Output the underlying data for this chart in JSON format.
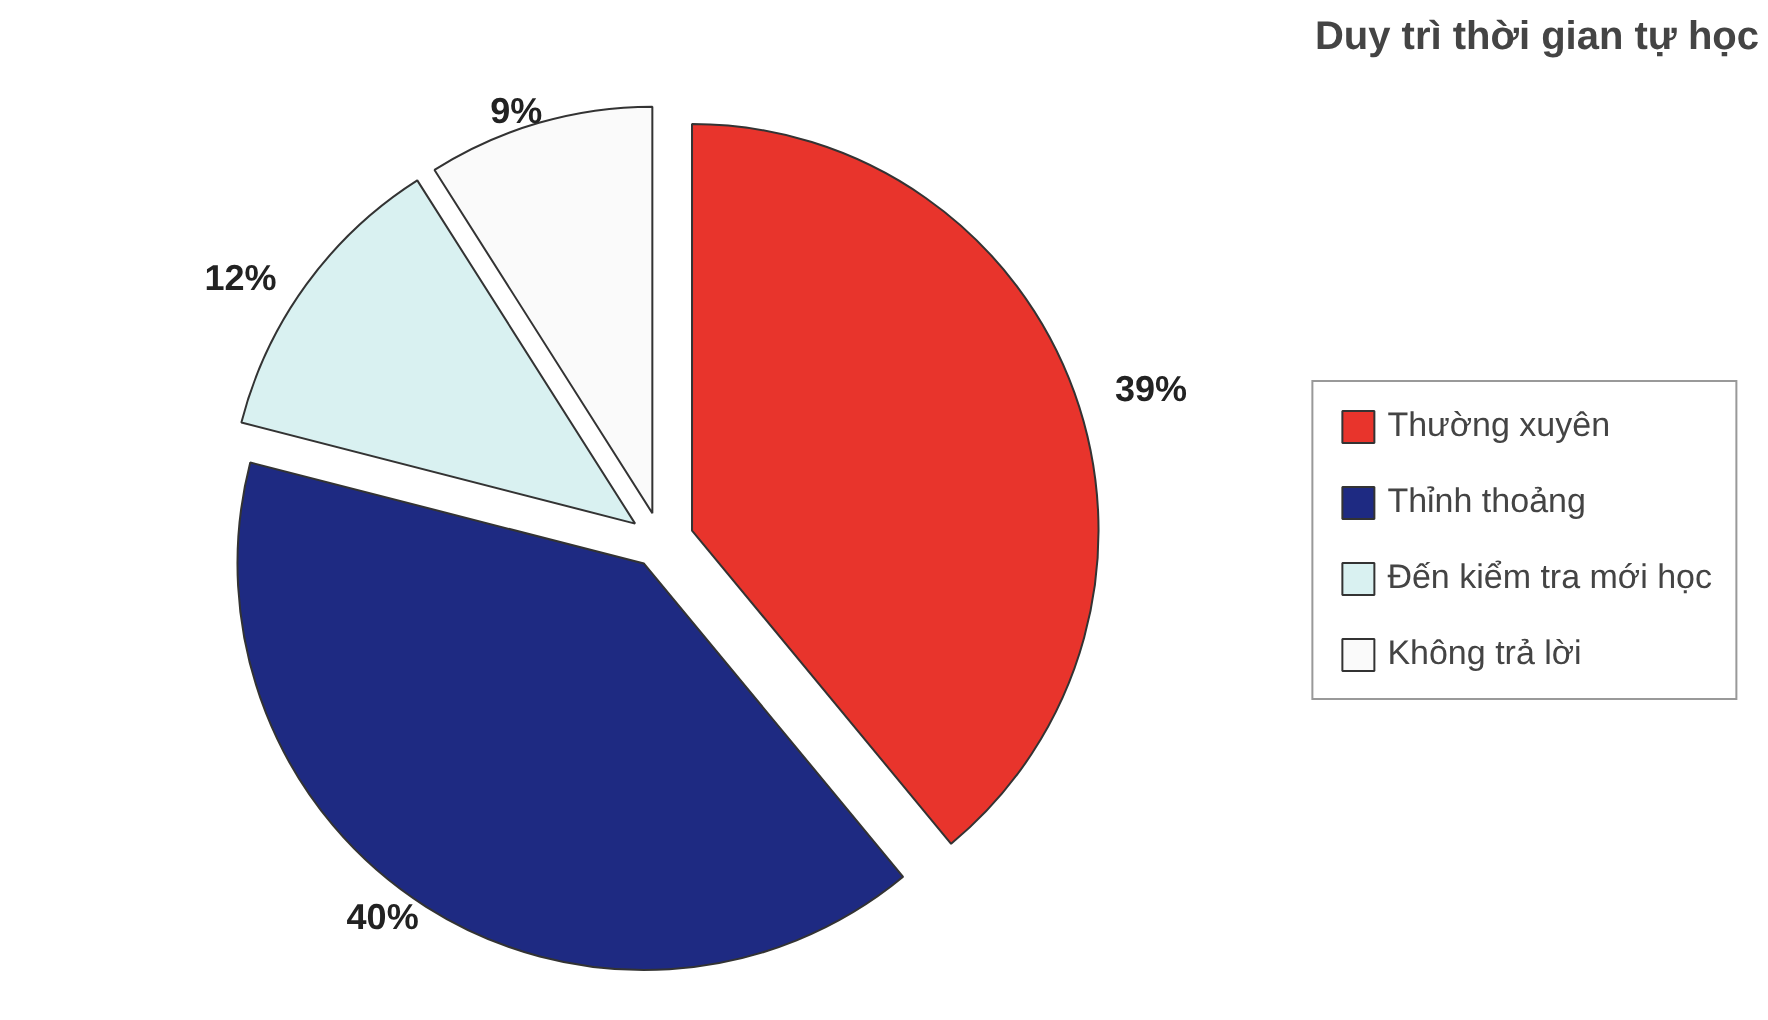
{
  "chart_data": {
    "type": "pie",
    "title": "Duy trì thời gian tự học",
    "categories": [
      "Thường xuyên",
      "Thỉnh thoảng",
      "Đến kiểm tra mới học",
      "Không trả lời"
    ],
    "values": [
      39,
      40,
      12,
      9
    ],
    "colors": [
      "#e8342c",
      "#1e2a82",
      "#d9f1f1",
      "#fafafa"
    ],
    "value_labels": [
      "39%",
      "40%",
      "12%",
      "9%"
    ],
    "legend": "right"
  }
}
